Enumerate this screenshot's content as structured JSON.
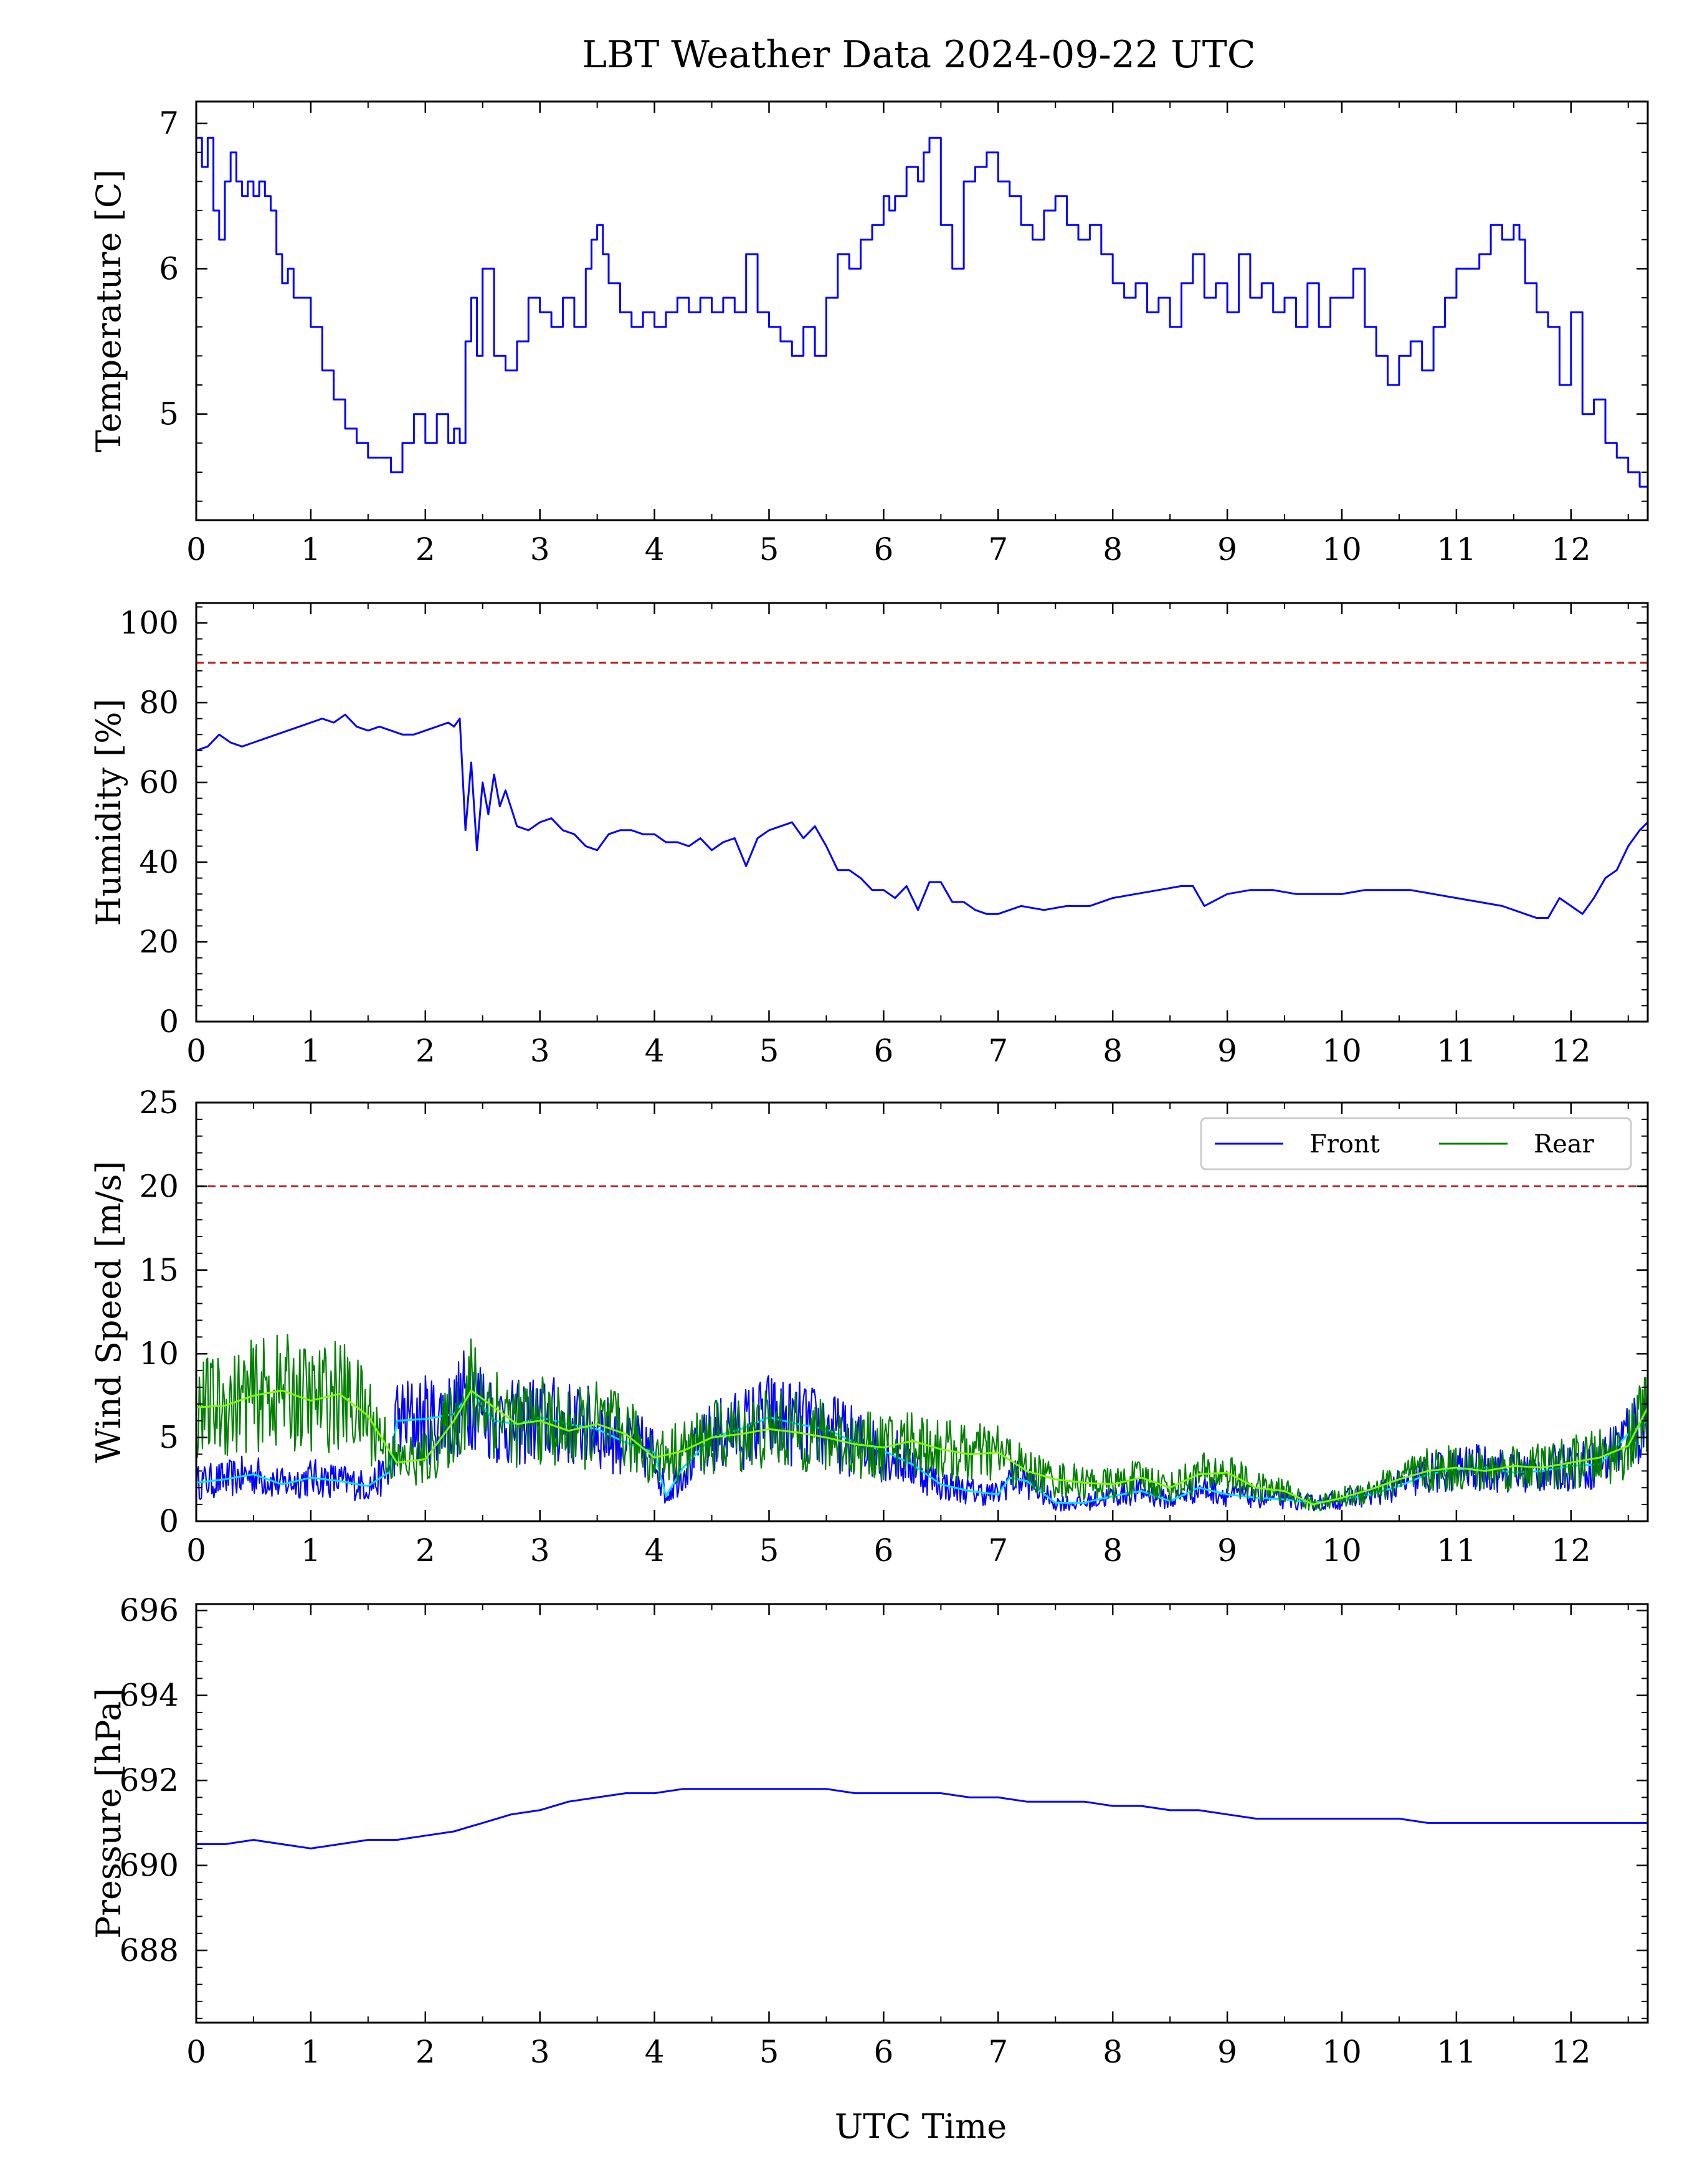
{
  "figure": {
    "title": "LBT Weather Data 2024-09-22 UTC",
    "xlabel": "UTC Time"
  },
  "colors": {
    "front": "#0000ff",
    "rear": "#008000",
    "front_smooth": "#00e5ff",
    "rear_smooth": "#7cfc00",
    "threshold": "#b22222"
  },
  "chart_data": [
    {
      "type": "line",
      "id": "temperature",
      "ylabel": "Temperature [C]",
      "xlim": [
        0,
        12.67
      ],
      "ylim": [
        4.27,
        7.15
      ],
      "xticks": [
        0,
        1,
        2,
        3,
        4,
        5,
        6,
        7,
        8,
        9,
        10,
        11,
        12
      ],
      "xtick_labels": [
        "0",
        "1",
        "2",
        "3",
        "4",
        "5",
        "6",
        "7",
        "8",
        "9",
        "10",
        "11",
        "12"
      ],
      "yticks": [
        5,
        6,
        7
      ],
      "ytick_labels": [
        "5",
        "6",
        "7"
      ],
      "series": [
        {
          "color": "#0000ff",
          "x": [
            0,
            0.05,
            0.1,
            0.15,
            0.2,
            0.25,
            0.3,
            0.35,
            0.4,
            0.45,
            0.5,
            0.55,
            0.6,
            0.65,
            0.7,
            0.75,
            0.8,
            0.85,
            0.9,
            1.0,
            1.1,
            1.2,
            1.3,
            1.4,
            1.5,
            1.6,
            1.7,
            1.8,
            1.9,
            2.0,
            2.1,
            2.2,
            2.25,
            2.3,
            2.35,
            2.4,
            2.45,
            2.5,
            2.6,
            2.7,
            2.8,
            2.9,
            3.0,
            3.1,
            3.2,
            3.3,
            3.4,
            3.45,
            3.5,
            3.55,
            3.6,
            3.7,
            3.8,
            3.9,
            4.0,
            4.1,
            4.2,
            4.3,
            4.4,
            4.5,
            4.6,
            4.7,
            4.8,
            4.9,
            5.0,
            5.1,
            5.2,
            5.3,
            5.4,
            5.5,
            5.6,
            5.7,
            5.8,
            5.9,
            6.0,
            6.05,
            6.1,
            6.2,
            6.3,
            6.35,
            6.4,
            6.5,
            6.6,
            6.7,
            6.8,
            6.9,
            7.0,
            7.1,
            7.2,
            7.3,
            7.4,
            7.5,
            7.6,
            7.7,
            7.8,
            7.9,
            8.0,
            8.1,
            8.2,
            8.3,
            8.4,
            8.5,
            8.6,
            8.7,
            8.8,
            8.9,
            9.0,
            9.1,
            9.2,
            9.3,
            9.4,
            9.5,
            9.6,
            9.7,
            9.8,
            9.9,
            10.0,
            10.1,
            10.2,
            10.3,
            10.4,
            10.5,
            10.6,
            10.7,
            10.8,
            10.9,
            11.0,
            11.1,
            11.2,
            11.3,
            11.4,
            11.5,
            11.55,
            11.6,
            11.7,
            11.8,
            11.9,
            12.0,
            12.1,
            12.2,
            12.3,
            12.4,
            12.5,
            12.6,
            12.67
          ],
          "y": [
            6.9,
            6.7,
            6.9,
            6.4,
            6.2,
            6.6,
            6.8,
            6.6,
            6.5,
            6.6,
            6.5,
            6.6,
            6.5,
            6.4,
            6.1,
            5.9,
            6.0,
            5.8,
            5.8,
            5.6,
            5.3,
            5.1,
            4.9,
            4.8,
            4.7,
            4.7,
            4.6,
            4.8,
            5.0,
            4.8,
            5.0,
            4.8,
            4.9,
            4.8,
            5.5,
            5.8,
            5.4,
            6.0,
            5.4,
            5.3,
            5.5,
            5.8,
            5.7,
            5.6,
            5.8,
            5.6,
            6.0,
            6.2,
            6.3,
            6.1,
            5.9,
            5.7,
            5.6,
            5.7,
            5.6,
            5.7,
            5.8,
            5.7,
            5.8,
            5.7,
            5.8,
            5.7,
            6.1,
            5.7,
            5.6,
            5.5,
            5.4,
            5.6,
            5.4,
            5.8,
            6.1,
            6.0,
            6.2,
            6.3,
            6.5,
            6.4,
            6.5,
            6.7,
            6.6,
            6.8,
            6.9,
            6.3,
            6.0,
            6.6,
            6.7,
            6.8,
            6.6,
            6.5,
            6.3,
            6.2,
            6.4,
            6.5,
            6.3,
            6.2,
            6.3,
            6.1,
            5.9,
            5.8,
            5.9,
            5.7,
            5.8,
            5.6,
            5.9,
            6.1,
            5.8,
            5.9,
            5.7,
            6.1,
            5.8,
            5.9,
            5.7,
            5.8,
            5.6,
            5.9,
            5.6,
            5.8,
            5.8,
            6.0,
            5.6,
            5.4,
            5.2,
            5.4,
            5.5,
            5.3,
            5.6,
            5.8,
            6.0,
            6.0,
            6.1,
            6.3,
            6.2,
            6.3,
            6.2,
            5.9,
            5.7,
            5.6,
            5.2,
            5.7,
            5.0,
            5.1,
            4.8,
            4.7,
            4.6,
            4.5,
            4.5
          ]
        }
      ]
    },
    {
      "type": "line",
      "id": "humidity",
      "ylabel": "Humidity [%]",
      "xlim": [
        0,
        12.67
      ],
      "ylim": [
        0,
        105
      ],
      "xticks": [
        0,
        1,
        2,
        3,
        4,
        5,
        6,
        7,
        8,
        9,
        10,
        11,
        12
      ],
      "xtick_labels": [
        "0",
        "1",
        "2",
        "3",
        "4",
        "5",
        "6",
        "7",
        "8",
        "9",
        "10",
        "11",
        "12"
      ],
      "yticks": [
        0,
        20,
        40,
        60,
        80,
        100
      ],
      "ytick_labels": [
        "0",
        "20",
        "40",
        "60",
        "80",
        "100"
      ],
      "threshold": 90,
      "series": [
        {
          "color": "#0000ff",
          "x": [
            0,
            0.1,
            0.2,
            0.3,
            0.4,
            0.5,
            0.6,
            0.7,
            0.8,
            0.9,
            1.0,
            1.1,
            1.2,
            1.3,
            1.4,
            1.5,
            1.6,
            1.7,
            1.8,
            1.9,
            2.0,
            2.1,
            2.2,
            2.25,
            2.3,
            2.35,
            2.4,
            2.45,
            2.5,
            2.55,
            2.6,
            2.65,
            2.7,
            2.8,
            2.9,
            3.0,
            3.1,
            3.2,
            3.3,
            3.4,
            3.5,
            3.6,
            3.7,
            3.8,
            3.9,
            4.0,
            4.1,
            4.2,
            4.3,
            4.4,
            4.5,
            4.6,
            4.7,
            4.8,
            4.9,
            5.0,
            5.1,
            5.2,
            5.3,
            5.4,
            5.5,
            5.6,
            5.7,
            5.8,
            5.9,
            6.0,
            6.1,
            6.2,
            6.3,
            6.4,
            6.5,
            6.6,
            6.7,
            6.8,
            6.9,
            7.0,
            7.2,
            7.4,
            7.6,
            7.8,
            8.0,
            8.2,
            8.4,
            8.6,
            8.7,
            8.8,
            9.0,
            9.2,
            9.4,
            9.6,
            9.8,
            10.0,
            10.2,
            10.4,
            10.6,
            10.8,
            11.0,
            11.2,
            11.4,
            11.6,
            11.7,
            11.8,
            11.9,
            12.0,
            12.1,
            12.2,
            12.3,
            12.4,
            12.5,
            12.6,
            12.67
          ],
          "y": [
            68,
            69,
            72,
            70,
            69,
            70,
            71,
            72,
            73,
            74,
            75,
            76,
            75,
            77,
            74,
            73,
            74,
            73,
            72,
            72,
            73,
            74,
            75,
            74,
            76,
            48,
            65,
            43,
            60,
            52,
            62,
            54,
            58,
            49,
            48,
            50,
            51,
            48,
            47,
            44,
            43,
            47,
            48,
            48,
            47,
            47,
            45,
            45,
            44,
            46,
            43,
            45,
            46,
            39,
            46,
            48,
            49,
            50,
            46,
            49,
            44,
            38,
            38,
            36,
            33,
            33,
            31,
            34,
            28,
            35,
            35,
            30,
            30,
            28,
            27,
            27,
            29,
            28,
            29,
            29,
            31,
            32,
            33,
            34,
            34,
            29,
            32,
            33,
            33,
            32,
            32,
            32,
            33,
            33,
            33,
            32,
            31,
            30,
            29,
            27,
            26,
            26,
            31,
            29,
            27,
            31,
            36,
            38,
            44,
            48,
            50
          ]
        }
      ]
    },
    {
      "type": "line",
      "id": "wind",
      "ylabel": "Wind Speed [m/s]",
      "xlim": [
        0,
        12.67
      ],
      "ylim": [
        0,
        25
      ],
      "xticks": [
        0,
        1,
        2,
        3,
        4,
        5,
        6,
        7,
        8,
        9,
        10,
        11,
        12
      ],
      "xtick_labels": [
        "0",
        "1",
        "2",
        "3",
        "4",
        "5",
        "6",
        "7",
        "8",
        "9",
        "10",
        "11",
        "12"
      ],
      "yticks": [
        0,
        5,
        10,
        15,
        20,
        25
      ],
      "ytick_labels": [
        "0",
        "5",
        "10",
        "15",
        "20",
        "25"
      ],
      "threshold": 20,
      "legend": [
        "Front",
        "Rear"
      ],
      "legend_loc": "upper right",
      "series": [
        {
          "name": "Front",
          "color": "#0000ff",
          "x": [
            0,
            0.25,
            0.5,
            0.75,
            1.0,
            1.25,
            1.5,
            1.7,
            1.75,
            2.0,
            2.25,
            2.4,
            2.6,
            2.8,
            3.0,
            3.25,
            3.5,
            3.75,
            4.0,
            4.1,
            4.25,
            4.5,
            4.75,
            5.0,
            5.25,
            5.5,
            5.75,
            6.0,
            6.25,
            6.5,
            6.75,
            7.0,
            7.1,
            7.25,
            7.5,
            7.75,
            8.0,
            8.25,
            8.5,
            8.75,
            9.0,
            9.25,
            9.5,
            9.75,
            10.0,
            10.25,
            10.5,
            10.75,
            11.0,
            11.25,
            11.5,
            11.75,
            12.0,
            12.25,
            12.5,
            12.67
          ],
          "y": [
            2.3,
            2.5,
            2.8,
            2.2,
            2.6,
            2.4,
            2.1,
            3.0,
            6.0,
            6.1,
            6.4,
            7.8,
            6.0,
            5.8,
            6.2,
            5.8,
            5.5,
            4.7,
            4.1,
            1.5,
            3.2,
            5.0,
            5.5,
            6.2,
            5.8,
            5.5,
            4.7,
            4.2,
            3.4,
            2.2,
            1.8,
            1.6,
            2.6,
            2.4,
            1.1,
            1.1,
            1.5,
            1.8,
            1.2,
            2.0,
            1.6,
            1.4,
            1.3,
            1.1,
            1.3,
            1.6,
            2.1,
            2.8,
            3.1,
            3.2,
            2.9,
            3.0,
            3.3,
            3.4,
            5.2,
            6.0
          ]
        },
        {
          "name": "Rear",
          "color": "#008000",
          "x": [
            0,
            0.25,
            0.5,
            0.75,
            1.0,
            1.25,
            1.5,
            1.75,
            2.0,
            2.25,
            2.4,
            2.6,
            2.8,
            3.0,
            3.25,
            3.5,
            3.75,
            4.0,
            4.25,
            4.5,
            4.75,
            5.0,
            5.25,
            5.5,
            5.75,
            6.0,
            6.25,
            6.5,
            6.75,
            7.0,
            7.25,
            7.5,
            7.75,
            8.0,
            8.25,
            8.5,
            8.75,
            9.0,
            9.25,
            9.5,
            9.75,
            10.0,
            10.25,
            10.5,
            10.75,
            11.0,
            11.25,
            11.5,
            11.75,
            12.0,
            12.25,
            12.5,
            12.67
          ],
          "y": [
            6.8,
            6.9,
            7.5,
            7.8,
            7.2,
            7.6,
            6.3,
            3.5,
            3.7,
            6.0,
            7.8,
            6.8,
            5.8,
            6.0,
            5.4,
            5.8,
            5.2,
            3.8,
            4.2,
            5.0,
            5.2,
            5.5,
            5.3,
            5.0,
            4.6,
            4.4,
            4.8,
            4.3,
            4.0,
            4.1,
            3.0,
            2.5,
            2.3,
            2.2,
            2.6,
            2.0,
            2.8,
            2.9,
            2.0,
            1.8,
            1.0,
            1.4,
            1.9,
            2.5,
            3.0,
            3.2,
            3.0,
            3.3,
            3.2,
            3.5,
            3.8,
            4.5,
            6.8
          ]
        }
      ]
    },
    {
      "type": "line",
      "id": "pressure",
      "ylabel": "Pressure [hPa]",
      "xlim": [
        0,
        12.67
      ],
      "ylim": [
        686.3,
        696.15
      ],
      "xticks": [
        0,
        1,
        2,
        3,
        4,
        5,
        6,
        7,
        8,
        9,
        10,
        11,
        12
      ],
      "xtick_labels": [
        "0",
        "1",
        "2",
        "3",
        "4",
        "5",
        "6",
        "7",
        "8",
        "9",
        "10",
        "11",
        "12"
      ],
      "yticks": [
        688,
        690,
        692,
        694,
        696
      ],
      "ytick_labels": [
        "688",
        "690",
        "692",
        "694",
        "696"
      ],
      "series": [
        {
          "color": "#0000ff",
          "x": [
            0,
            0.25,
            0.5,
            0.75,
            1.0,
            1.25,
            1.5,
            1.75,
            2.0,
            2.25,
            2.5,
            2.75,
            3.0,
            3.25,
            3.5,
            3.75,
            4.0,
            4.25,
            4.5,
            4.75,
            5.0,
            5.25,
            5.5,
            5.75,
            6.0,
            6.25,
            6.5,
            6.75,
            7.0,
            7.25,
            7.5,
            7.75,
            8.0,
            8.25,
            8.5,
            8.75,
            9.0,
            9.25,
            9.5,
            9.75,
            10.0,
            10.25,
            10.5,
            10.75,
            11.0,
            11.25,
            11.5,
            11.75,
            12.0,
            12.25,
            12.5,
            12.67
          ],
          "y": [
            690.5,
            690.5,
            690.6,
            690.5,
            690.4,
            690.5,
            690.6,
            690.6,
            690.7,
            690.8,
            691.0,
            691.2,
            691.3,
            691.5,
            691.6,
            691.7,
            691.7,
            691.8,
            691.8,
            691.8,
            691.8,
            691.8,
            691.8,
            691.7,
            691.7,
            691.7,
            691.7,
            691.6,
            691.6,
            691.5,
            691.5,
            691.5,
            691.4,
            691.4,
            691.3,
            691.3,
            691.2,
            691.1,
            691.1,
            691.1,
            691.1,
            691.1,
            691.1,
            691.0,
            691.0,
            691.0,
            691.0,
            691.0,
            691.0,
            691.0,
            691.0,
            691.0
          ]
        }
      ]
    }
  ]
}
